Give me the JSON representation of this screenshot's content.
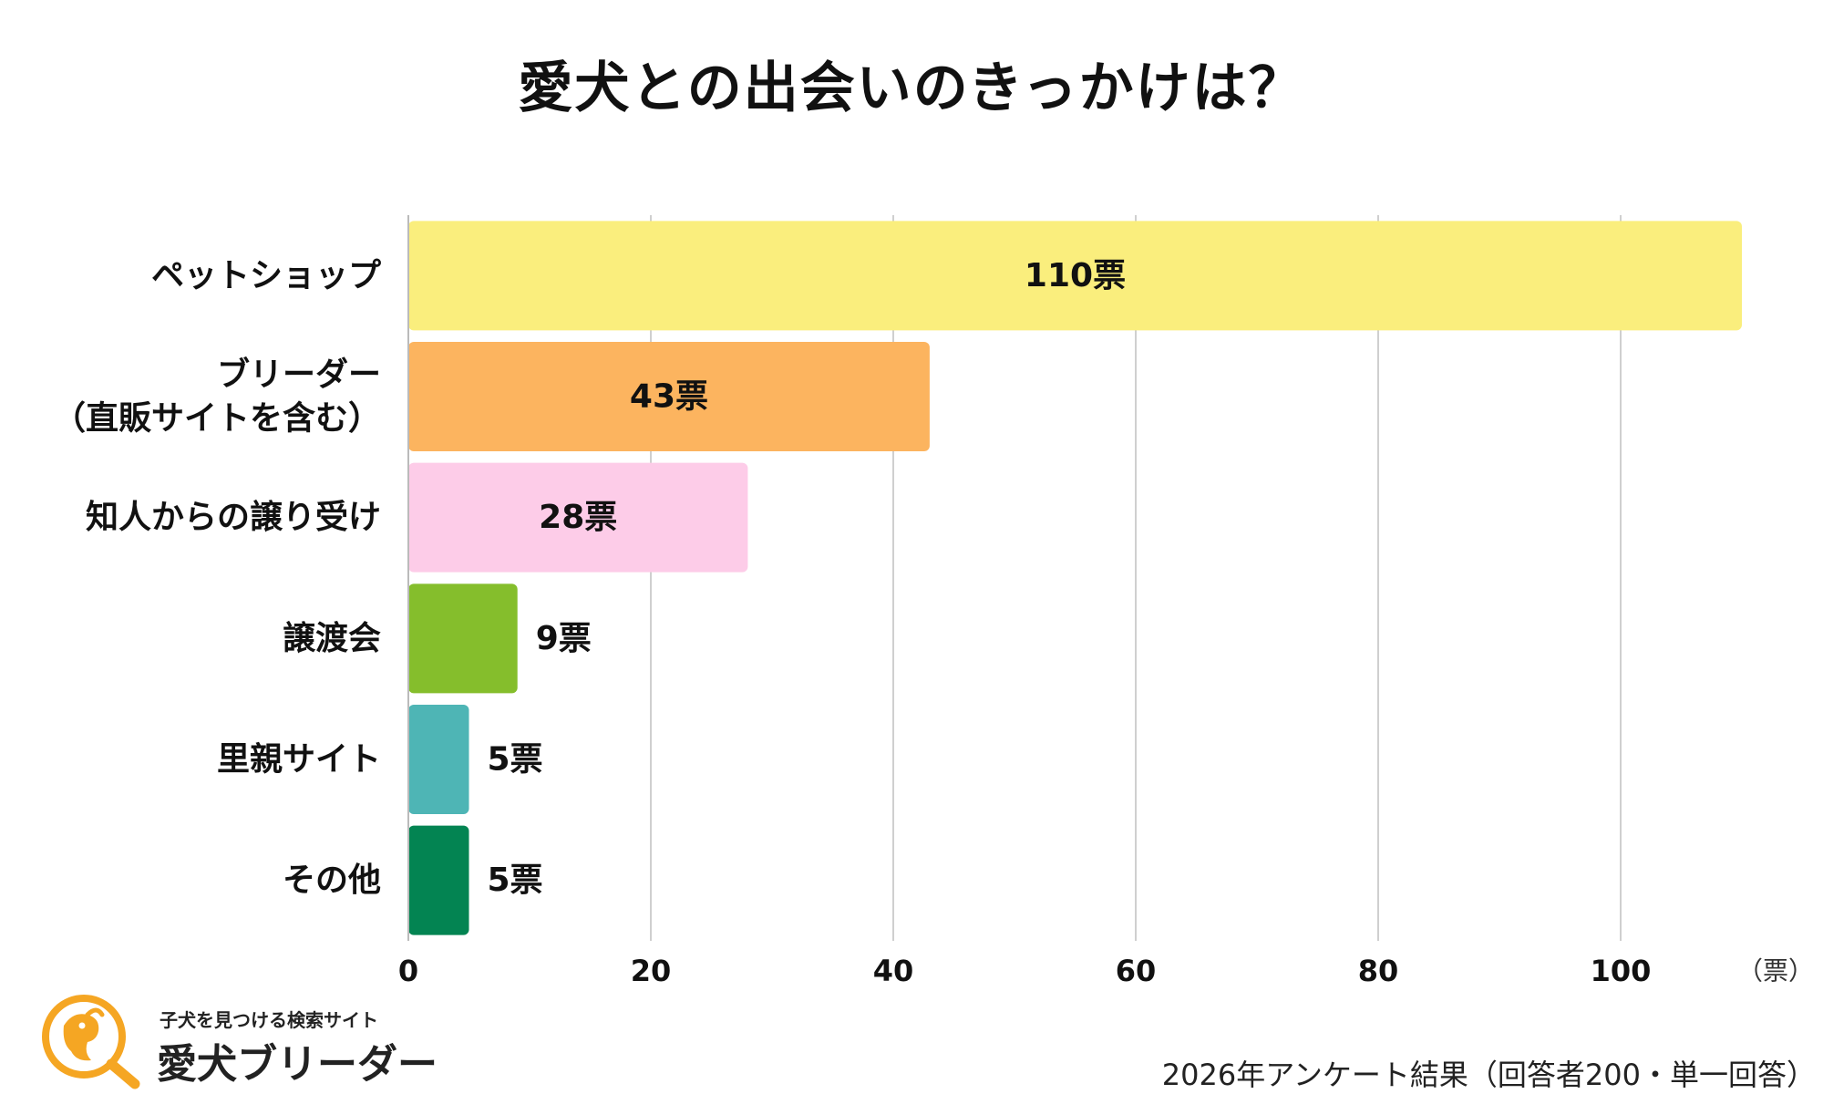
{
  "title": "愛犬との出会いのきっかけは？",
  "chart_data": {
    "type": "bar",
    "orientation": "horizontal",
    "title": "愛犬との出会いのきっかけは？",
    "categories": [
      [
        "ペットショップ"
      ],
      [
        "ブリーダー",
        "（直販サイトを含む）"
      ],
      [
        "知人からの譲り受け"
      ],
      [
        "譲渡会"
      ],
      [
        "里親サイト"
      ],
      [
        "その他"
      ]
    ],
    "values": [
      110,
      43,
      28,
      9,
      5,
      5
    ],
    "value_labels": [
      "110票",
      "43票",
      "28票",
      "9票",
      "5票",
      "5票"
    ],
    "colors": [
      "#FAEE7D",
      "#FCB45F",
      "#FDCCE8",
      "#85BE2C",
      "#4EB5B5",
      "#038452"
    ],
    "xlim": [
      0,
      110
    ],
    "xticks": [
      "0",
      "20",
      "40",
      "60",
      "80",
      "100"
    ],
    "xunit": "（票）",
    "grid": true
  },
  "logo": {
    "tagline": "子犬を見つける検索サイト",
    "name": "愛犬ブリーダー",
    "accent": "#F5A623"
  },
  "footnote": "2026年アンケート結果（回答者200・単一回答）"
}
